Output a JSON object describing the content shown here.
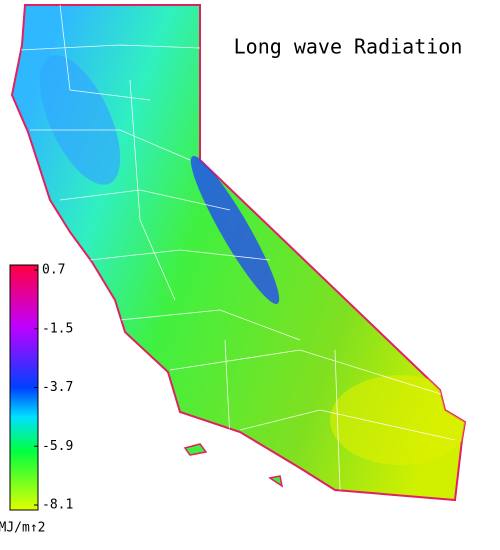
{
  "title": "Long wave Radiation",
  "colorbar": {
    "range": [
      -8.1,
      0.7
    ],
    "ticks": [
      0.7,
      -1.5,
      -3.7,
      -5.9,
      -8.1
    ],
    "unit": "MJ/m↑2"
  }
}
